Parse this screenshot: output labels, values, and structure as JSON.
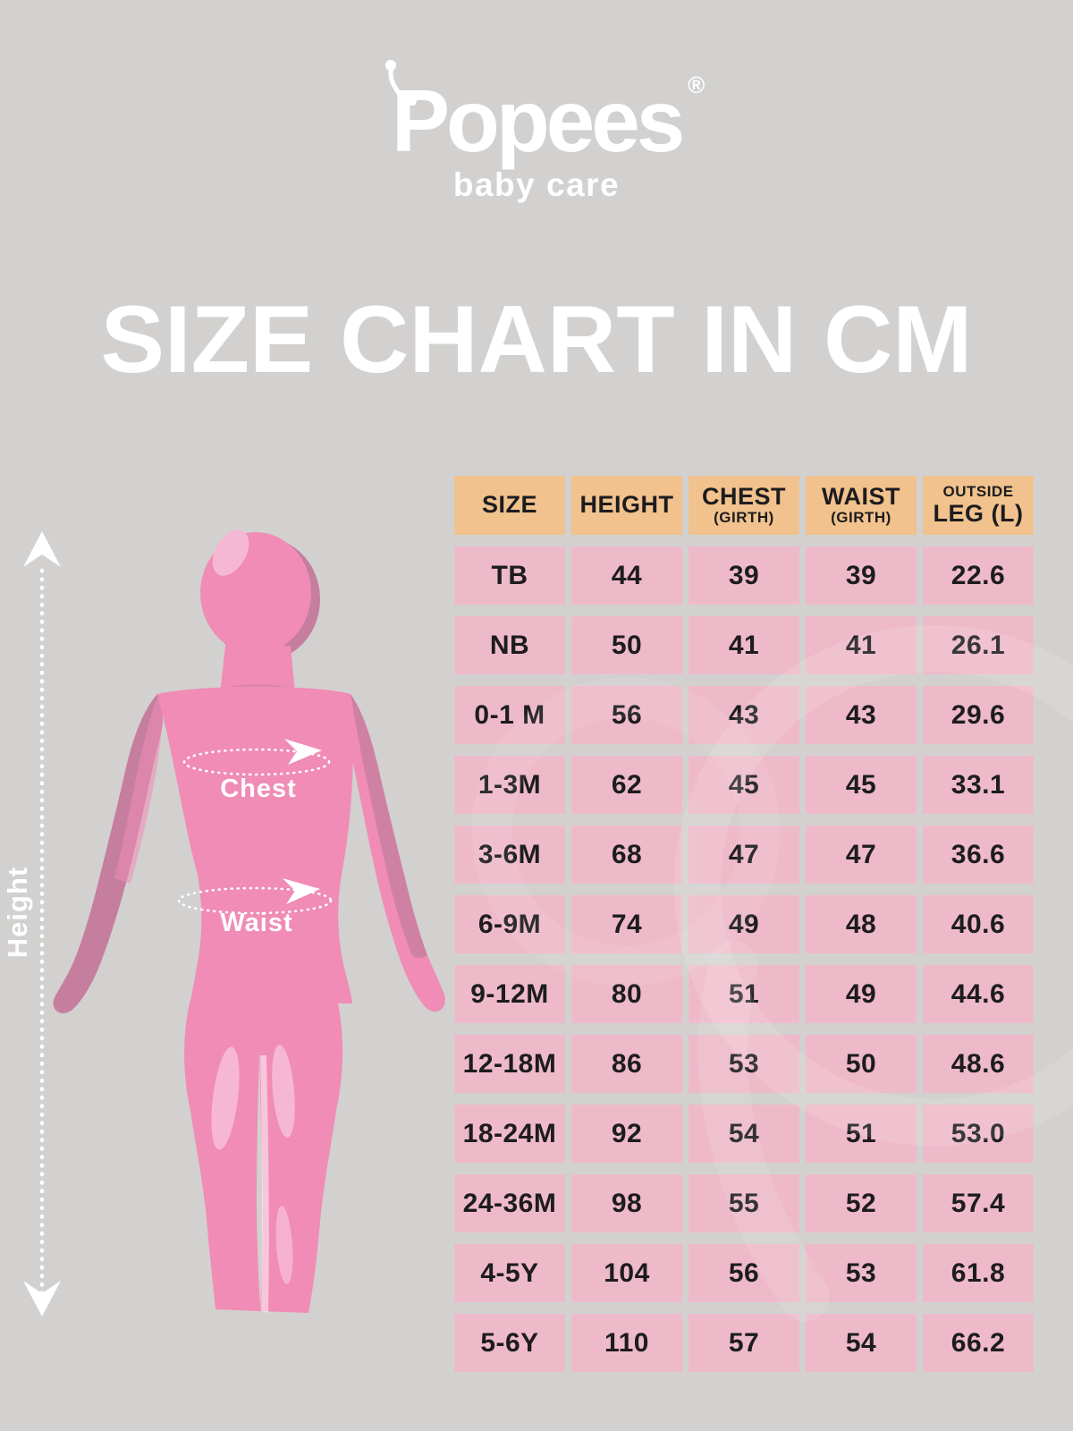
{
  "brand": {
    "logo_text": "Popees",
    "registered_mark": "®",
    "tagline": "baby care"
  },
  "title": "SIZE CHART IN CM",
  "figure": {
    "height_label": "Height",
    "chest_label": "Chest",
    "waist_label": "Waist"
  },
  "table_headers": [
    {
      "main": "SIZE",
      "sub": "",
      "sub_pos": "none"
    },
    {
      "main": "HEIGHT",
      "sub": "",
      "sub_pos": "none"
    },
    {
      "main": "CHEST",
      "sub": "(GIRTH)",
      "sub_pos": "below"
    },
    {
      "main": "WAIST",
      "sub": "(GIRTH)",
      "sub_pos": "below"
    },
    {
      "main": "LEG (L)",
      "sub": "OUTSIDE",
      "sub_pos": "above"
    }
  ],
  "chart_data": {
    "type": "table",
    "title": "SIZE CHART IN CM",
    "unit": "cm",
    "columns": [
      "SIZE",
      "HEIGHT",
      "CHEST (GIRTH)",
      "WAIST (GIRTH)",
      "OUTSIDE LEG (L)"
    ],
    "rows": [
      [
        "TB",
        "44",
        "39",
        "39",
        "22.6"
      ],
      [
        "NB",
        "50",
        "41",
        "41",
        "26.1"
      ],
      [
        "0-1 M",
        "56",
        "43",
        "43",
        "29.6"
      ],
      [
        "1-3M",
        "62",
        "45",
        "45",
        "33.1"
      ],
      [
        "3-6M",
        "68",
        "47",
        "47",
        "36.6"
      ],
      [
        "6-9M",
        "74",
        "49",
        "48",
        "40.6"
      ],
      [
        "9-12M",
        "80",
        "51",
        "49",
        "44.6"
      ],
      [
        "12-18M",
        "86",
        "53",
        "50",
        "48.6"
      ],
      [
        "18-24M",
        "92",
        "54",
        "51",
        "53.0"
      ],
      [
        "24-36M",
        "98",
        "55",
        "52",
        "57.4"
      ],
      [
        "4-5Y",
        "104",
        "56",
        "53",
        "61.8"
      ],
      [
        "5-6Y",
        "110",
        "57",
        "54",
        "66.2"
      ]
    ]
  },
  "colors": {
    "background": "#d2d1d0",
    "header_cell": "#f1c28d",
    "data_cell": "#eebaca",
    "ink": "#1d1c1e",
    "white": "#ffffff",
    "body_pink": "#f08cb5",
    "body_shadow": "#c67e9f",
    "body_highlight": "#f6b7d2"
  }
}
